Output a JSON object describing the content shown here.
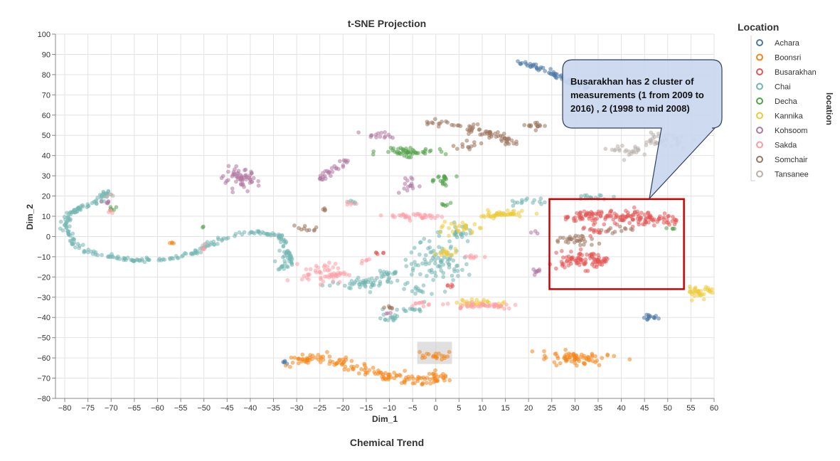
{
  "footer_label": "Chemical Trend",
  "side_label": "location",
  "chart_data": {
    "type": "scatter",
    "title": "t-SNE Projection",
    "xlabel": "Dim_1",
    "ylabel": "Dim_2",
    "xlim": [
      -82,
      60
    ],
    "ylim": [
      -80,
      100
    ],
    "x_ticks": [
      -80,
      -75,
      -70,
      -65,
      -60,
      -55,
      -50,
      -45,
      -40,
      -35,
      -30,
      -25,
      -20,
      -15,
      -10,
      -5,
      0,
      5,
      10,
      15,
      20,
      25,
      30,
      35,
      40,
      45,
      50,
      55,
      60
    ],
    "y_ticks": [
      -80,
      -70,
      -60,
      -50,
      -40,
      -30,
      -20,
      -10,
      0,
      10,
      20,
      30,
      40,
      50,
      60,
      70,
      80,
      90,
      100
    ],
    "x_tick_labels": [
      "−80",
      "−75",
      "−70",
      "−65",
      "−60",
      "−55",
      "−50",
      "−45",
      "−40",
      "−35",
      "−30",
      "−25",
      "−20",
      "−15",
      "−10",
      "−5",
      "0",
      "5",
      "10",
      "15",
      "20",
      "25",
      "30",
      "35",
      "40",
      "45",
      "50",
      "55",
      "60"
    ],
    "y_tick_labels": [
      "−80",
      "−70",
      "−60",
      "−50",
      "−40",
      "−30",
      "−20",
      "−10",
      "0",
      "10",
      "20",
      "30",
      "40",
      "50",
      "60",
      "70",
      "80",
      "90",
      "100"
    ],
    "grid": true,
    "legend": {
      "title": "Location",
      "placement": "right",
      "entries": [
        {
          "name": "Achara",
          "color": "#4c78a8"
        },
        {
          "name": "Boonsri",
          "color": "#f58518"
        },
        {
          "name": "Busarakhan",
          "color": "#e45756"
        },
        {
          "name": "Chai",
          "color": "#72b7b2"
        },
        {
          "name": "Decha",
          "color": "#54a24b"
        },
        {
          "name": "Kannika",
          "color": "#eeca3b"
        },
        {
          "name": "Kohsoom",
          "color": "#b279a2"
        },
        {
          "name": "Sakda",
          "color": "#ff9da6"
        },
        {
          "name": "Somchair",
          "color": "#9d755d"
        },
        {
          "name": "Tansanee",
          "color": "#bab0ac"
        }
      ]
    },
    "series": [
      {
        "name": "Achara",
        "clusters": [
          {
            "shape": "path",
            "pts": [
              [
                17,
                87
              ],
              [
                20,
                85
              ],
              [
                24,
                82
              ],
              [
                27,
                79
              ],
              [
                30,
                75
              ],
              [
                33,
                73
              ]
            ],
            "jitter": 1.2,
            "n": 60
          },
          {
            "shape": "blob",
            "cx": 46,
            "cy": -40,
            "rx": 1.6,
            "ry": 1.5,
            "n": 14
          },
          {
            "shape": "blob",
            "cx": -32.5,
            "cy": -62.5,
            "rx": 0.7,
            "ry": 1,
            "n": 5
          }
        ]
      },
      {
        "name": "Boonsri",
        "clusters": [
          {
            "shape": "path",
            "pts": [
              [
                -31,
                -62
              ],
              [
                -26,
                -60
              ],
              [
                -20,
                -62
              ],
              [
                -15,
                -67
              ],
              [
                -8,
                -70
              ],
              [
                -2,
                -71
              ],
              [
                2,
                -69
              ]
            ],
            "jitter": 2.5,
            "n": 150
          },
          {
            "shape": "blob",
            "cx": 0,
            "cy": -59,
            "rx": 2.2,
            "ry": 2,
            "n": 20
          },
          {
            "shape": "blob",
            "cx": 30,
            "cy": -60,
            "rx": 6,
            "ry": 3,
            "n": 70
          },
          {
            "shape": "blob",
            "cx": -57,
            "cy": -3,
            "rx": 1,
            "ry": 0.8,
            "n": 4
          }
        ]
      },
      {
        "name": "Busarakhan",
        "clusters": [
          {
            "shape": "blob",
            "cx": 32,
            "cy": 10,
            "rx": 4,
            "ry": 2.5,
            "n": 50
          },
          {
            "shape": "blob",
            "cx": 42,
            "cy": 10,
            "rx": 5,
            "ry": 3,
            "n": 70
          },
          {
            "shape": "blob",
            "cx": 49,
            "cy": 8,
            "rx": 3,
            "ry": 2.5,
            "n": 30
          },
          {
            "shape": "blob",
            "cx": 34,
            "cy": 3,
            "rx": 2,
            "ry": 2,
            "n": 15
          },
          {
            "shape": "blob",
            "cx": 30,
            "cy": -12,
            "rx": 4,
            "ry": 4,
            "n": 60
          },
          {
            "shape": "blob",
            "cx": 35,
            "cy": -12,
            "rx": 2.5,
            "ry": 3,
            "n": 30
          },
          {
            "shape": "blob",
            "cx": 3,
            "cy": -24,
            "rx": 1,
            "ry": 1,
            "n": 5
          },
          {
            "shape": "blob",
            "cx": -12,
            "cy": -8,
            "rx": 1,
            "ry": 0.7,
            "n": 5
          }
        ]
      },
      {
        "name": "Chai",
        "clusters": [
          {
            "shape": "path",
            "pts": [
              [
                -71,
                22
              ],
              [
                -73,
                17
              ],
              [
                -77,
                14
              ],
              [
                -79.5,
                10
              ],
              [
                -80,
                4
              ],
              [
                -78,
                -3
              ],
              [
                -75,
                -8
              ],
              [
                -70,
                -10
              ],
              [
                -65,
                -12
              ],
              [
                -58,
                -11
              ],
              [
                -52,
                -8
              ],
              [
                -47,
                -2
              ],
              [
                -42,
                2
              ],
              [
                -37,
                2
              ],
              [
                -33,
                0
              ],
              [
                -32,
                -8
              ],
              [
                -31,
                -13
              ]
            ],
            "jitter": 1.0,
            "n": 260
          },
          {
            "shape": "blob",
            "cx": -33,
            "cy": -15,
            "rx": 1.5,
            "ry": 3,
            "n": 15
          },
          {
            "shape": "blob",
            "cx": -15,
            "cy": -23,
            "rx": 5,
            "ry": 2.5,
            "n": 50
          },
          {
            "shape": "blob",
            "cx": -11,
            "cy": -18,
            "rx": 2.5,
            "ry": 1.5,
            "n": 15
          },
          {
            "shape": "blob",
            "cx": -5,
            "cy": -36,
            "rx": 2,
            "ry": 1,
            "n": 12
          },
          {
            "shape": "blob",
            "cx": 0,
            "cy": -12,
            "rx": 5,
            "ry": 9,
            "n": 90
          },
          {
            "shape": "blob",
            "cx": 5,
            "cy": 2,
            "rx": 3,
            "ry": 3,
            "n": 25
          },
          {
            "shape": "blob",
            "cx": 20,
            "cy": 17,
            "rx": 4,
            "ry": 1.5,
            "n": 15
          },
          {
            "shape": "blob",
            "cx": 33,
            "cy": 19.5,
            "rx": 4,
            "ry": 1,
            "n": 15
          },
          {
            "shape": "blob",
            "cx": -10,
            "cy": -40,
            "rx": 2,
            "ry": 2.5,
            "n": 15
          },
          {
            "shape": "blob",
            "cx": -4,
            "cy": -27,
            "rx": 2,
            "ry": 2,
            "n": 12
          },
          {
            "shape": "blob",
            "cx": -18,
            "cy": 17,
            "rx": 1,
            "ry": 1,
            "n": 5
          }
        ]
      },
      {
        "name": "Decha",
        "clusters": [
          {
            "shape": "blob",
            "cx": -6,
            "cy": 42,
            "rx": 5,
            "ry": 1.8,
            "n": 50
          },
          {
            "shape": "blob",
            "cx": 1,
            "cy": 28,
            "rx": 2,
            "ry": 3,
            "n": 20
          },
          {
            "shape": "blob",
            "cx": -70,
            "cy": 13,
            "rx": 1,
            "ry": 1.5,
            "n": 6
          },
          {
            "shape": "blob",
            "cx": 2,
            "cy": 16,
            "rx": 1.5,
            "ry": 1,
            "n": 6
          },
          {
            "shape": "blob",
            "cx": 51,
            "cy": 4,
            "rx": 1,
            "ry": 1,
            "n": 4
          },
          {
            "shape": "blob",
            "cx": -50,
            "cy": 4,
            "rx": 0.5,
            "ry": 0.5,
            "n": 2
          }
        ]
      },
      {
        "name": "Kannika",
        "clusters": [
          {
            "shape": "blob",
            "cx": 14,
            "cy": 11,
            "rx": 5,
            "ry": 1.5,
            "n": 45
          },
          {
            "shape": "blob",
            "cx": 5,
            "cy": 4,
            "rx": 3,
            "ry": 2.5,
            "n": 25
          },
          {
            "shape": "blob",
            "cx": 57,
            "cy": -27,
            "rx": 2.5,
            "ry": 2.5,
            "n": 35
          },
          {
            "shape": "blob",
            "cx": 10,
            "cy": -33,
            "rx": 5,
            "ry": 1.5,
            "n": 30
          },
          {
            "shape": "blob",
            "cx": 2,
            "cy": -8,
            "rx": 2.5,
            "ry": 2.5,
            "n": 15
          }
        ]
      },
      {
        "name": "Kohsoom",
        "clusters": [
          {
            "shape": "blob",
            "cx": -42,
            "cy": 28,
            "rx": 3,
            "ry": 4,
            "n": 60
          },
          {
            "shape": "path",
            "pts": [
              [
                -25,
                28
              ],
              [
                -22,
                33
              ],
              [
                -19,
                38
              ]
            ],
            "jitter": 1.2,
            "n": 30
          },
          {
            "shape": "blob",
            "cx": -12,
            "cy": 50,
            "rx": 3,
            "ry": 1.5,
            "n": 15
          },
          {
            "shape": "blob",
            "cx": -6,
            "cy": 25,
            "rx": 2,
            "ry": 4,
            "n": 15
          },
          {
            "shape": "blob",
            "cx": -71,
            "cy": 17,
            "rx": 1,
            "ry": 1,
            "n": 6
          },
          {
            "shape": "blob",
            "cx": 22,
            "cy": -17,
            "rx": 2,
            "ry": 1.5,
            "n": 8
          },
          {
            "shape": "blob",
            "cx": 22,
            "cy": 2,
            "rx": 1,
            "ry": 0.5,
            "n": 3
          },
          {
            "shape": "blob",
            "cx": -10,
            "cy": -38,
            "rx": 0.8,
            "ry": 0.8,
            "n": 3
          }
        ]
      },
      {
        "name": "Sakda",
        "clusters": [
          {
            "shape": "blob",
            "cx": -24,
            "cy": -18,
            "rx": 4,
            "ry": 4,
            "n": 55
          },
          {
            "shape": "blob",
            "cx": -4,
            "cy": 10,
            "rx": 5,
            "ry": 1.5,
            "n": 35
          },
          {
            "shape": "blob",
            "cx": 10,
            "cy": -34,
            "rx": 7,
            "ry": 1.5,
            "n": 40
          },
          {
            "shape": "blob",
            "cx": -3,
            "cy": -33,
            "rx": 2,
            "ry": 1,
            "n": 10
          },
          {
            "shape": "blob",
            "cx": -18,
            "cy": 16,
            "rx": 1,
            "ry": 1,
            "n": 5
          },
          {
            "shape": "blob",
            "cx": -70,
            "cy": 12,
            "rx": 0.7,
            "ry": 1,
            "n": 4
          },
          {
            "shape": "blob",
            "cx": -50,
            "cy": -6,
            "rx": 0.8,
            "ry": 0.8,
            "n": 4
          },
          {
            "shape": "blob",
            "cx": -15,
            "cy": -12,
            "rx": 1,
            "ry": 1,
            "n": 5
          },
          {
            "shape": "blob",
            "cx": 8,
            "cy": -10,
            "rx": 2,
            "ry": 1,
            "n": 8
          }
        ]
      },
      {
        "name": "Somchair",
        "clusters": [
          {
            "shape": "path",
            "pts": [
              [
                -3,
                57
              ],
              [
                4,
                55
              ],
              [
                10,
                52
              ],
              [
                15,
                48
              ],
              [
                17,
                46
              ]
            ],
            "jitter": 2.0,
            "n": 70
          },
          {
            "shape": "blob",
            "cx": 22,
            "cy": 55,
            "rx": 1.8,
            "ry": 1.8,
            "n": 15
          },
          {
            "shape": "blob",
            "cx": -28,
            "cy": 4,
            "rx": 2,
            "ry": 1.5,
            "n": 10
          },
          {
            "shape": "blob",
            "cx": 30,
            "cy": -2,
            "rx": 4,
            "ry": 2.5,
            "n": 30
          },
          {
            "shape": "blob",
            "cx": -24,
            "cy": 13,
            "rx": 0.6,
            "ry": 1.2,
            "n": 4
          },
          {
            "shape": "blob",
            "cx": -10,
            "cy": -35,
            "rx": 1.8,
            "ry": 1.2,
            "n": 6
          },
          {
            "shape": "blob",
            "cx": 40,
            "cy": 3,
            "rx": 3,
            "ry": 1.5,
            "n": 12
          },
          {
            "shape": "blob",
            "cx": 7,
            "cy": 45,
            "rx": 3,
            "ry": 1.5,
            "n": 12
          }
        ]
      },
      {
        "name": "Tansanee",
        "clusters": [
          {
            "shape": "blob",
            "cx": 42,
            "cy": 42,
            "rx": 3,
            "ry": 2.5,
            "n": 25
          },
          {
            "shape": "blob",
            "cx": 49,
            "cy": 48,
            "rx": 4,
            "ry": 3,
            "n": 40
          },
          {
            "shape": "blob",
            "cx": -70,
            "cy": 20,
            "rx": 1,
            "ry": 1,
            "n": 5
          },
          {
            "shape": "blob",
            "cx": -50,
            "cy": -4,
            "rx": 0.8,
            "ry": 0.8,
            "n": 3
          }
        ]
      }
    ],
    "annotations": [
      {
        "type": "rect",
        "label": "red-highlight-box",
        "x0": 24.5,
        "x1": 53.5,
        "y0": -26,
        "y1": 18.5,
        "color": "#d00000"
      },
      {
        "type": "rect",
        "label": "gray-selection-box",
        "x0": -4,
        "x1": 3.5,
        "y0": -63,
        "y1": -52,
        "color": "#cccccc"
      },
      {
        "type": "callout",
        "lines": [
          "Busarakhan has 2 cluster of",
          "measurements (1 from 2009 to",
          "2016) , 2 (1998 to mid 2008)"
        ]
      }
    ]
  }
}
